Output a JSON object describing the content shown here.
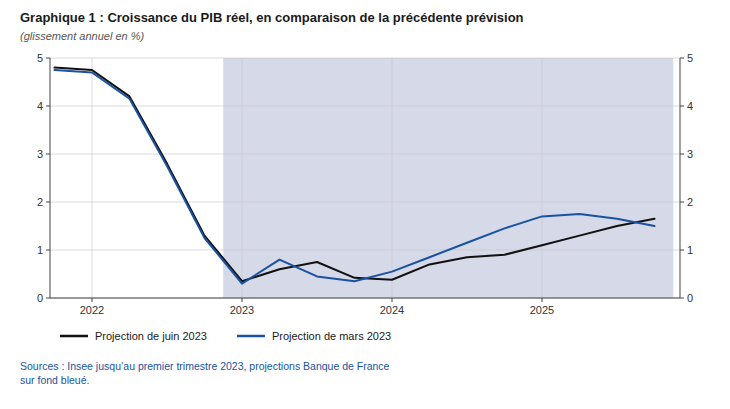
{
  "chart_data": {
    "type": "line",
    "title": "Graphique 1 : Croissance du PIB réel, en comparaison de la précédente prévision",
    "subtitle": "(glissement annuel en %)",
    "source": "Sources : Insee jusqu’au premier trimestre 2023, projections Banque de France\nsur fond bleué.",
    "x": [
      2021.75,
      2022.0,
      2022.25,
      2022.5,
      2022.75,
      2023.0,
      2023.25,
      2023.5,
      2023.75,
      2024.0,
      2024.25,
      2024.5,
      2024.75,
      2025.0,
      2025.25,
      2025.5,
      2025.75
    ],
    "series": [
      {
        "name": "Projection de juin 2023",
        "color": "#111111",
        "values": [
          4.8,
          4.75,
          4.2,
          2.8,
          1.3,
          0.35,
          0.6,
          0.75,
          0.42,
          0.38,
          0.7,
          0.85,
          0.9,
          1.1,
          1.3,
          1.5,
          1.65
        ]
      },
      {
        "name": "Projection de mars 2023",
        "color": "#1a52a0",
        "values": [
          4.75,
          4.7,
          4.15,
          2.75,
          1.25,
          0.3,
          0.8,
          0.45,
          0.35,
          0.55,
          0.85,
          1.15,
          1.45,
          1.7,
          1.75,
          1.65,
          1.5
        ]
      }
    ],
    "shaded_region": {
      "x": [
        2022.875,
        2025.875
      ],
      "color": "#d5d9e8"
    },
    "xlim": [
      2021.72,
      2025.92
    ],
    "xticks": [
      2022,
      2023,
      2024,
      2025
    ],
    "ylim": [
      0,
      5
    ],
    "yticks": [
      0,
      1,
      2,
      3,
      4,
      5
    ],
    "y2lim": [
      0,
      5
    ],
    "y2ticks": [
      0,
      1,
      2,
      3,
      4,
      5
    ],
    "grid": true,
    "legend": "bottom"
  }
}
